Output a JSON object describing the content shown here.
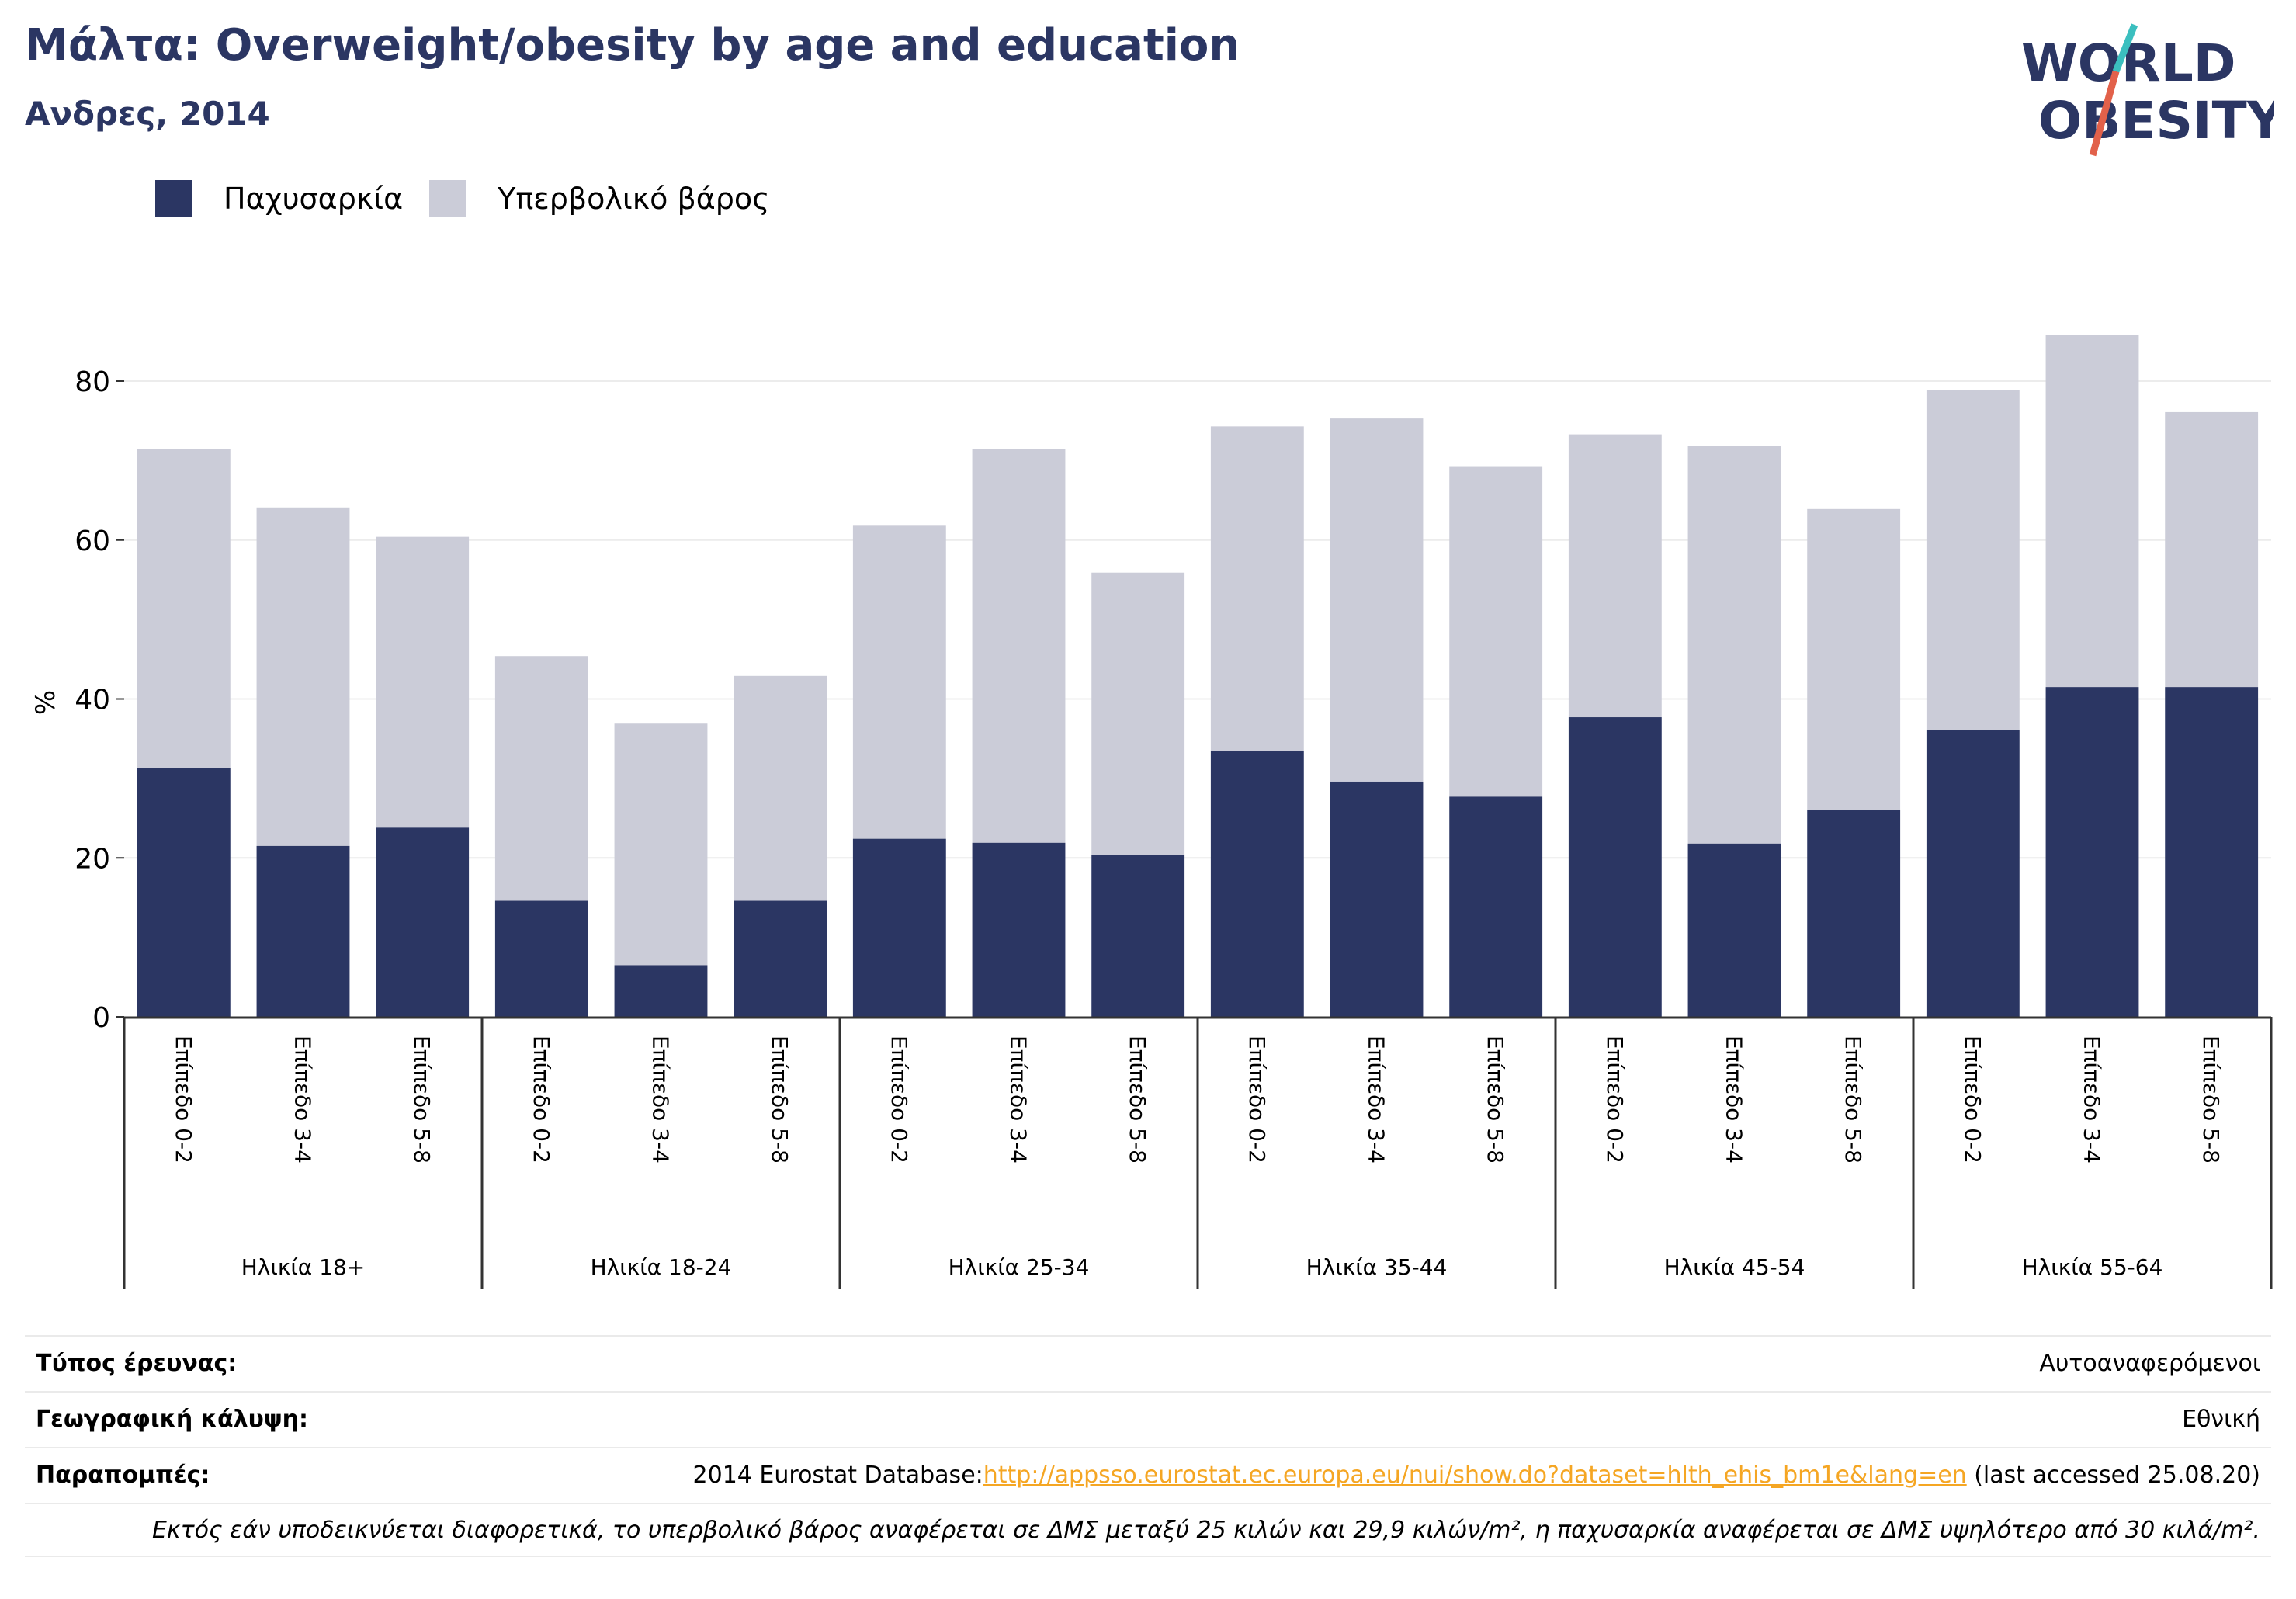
{
  "header": {
    "title": "Μάλτα: Overweight/obesity by age and education",
    "subtitle": "Ανδρες, 2014",
    "logo_line1": "WORLD",
    "logo_line2": "OBESITY"
  },
  "colors": {
    "obesity": "#2b3663",
    "overweight": "#cbccd8",
    "title": "#2b3663",
    "link": "#f5a623",
    "logo_teal": "#3bbfbf",
    "logo_red": "#e2614a"
  },
  "legend": {
    "items": [
      {
        "label": "Παχυσαρκία",
        "color": "#2b3663"
      },
      {
        "label": "Υπερβολικό βάρος",
        "color": "#cbccd8"
      }
    ]
  },
  "chart_data": {
    "type": "bar",
    "stacked": true,
    "ylabel": "%",
    "ylim": [
      0,
      90
    ],
    "yticks": [
      0,
      20,
      40,
      60,
      80
    ],
    "grid": true,
    "legend_position": "top-left",
    "groups": [
      "Ηλικία 18+",
      "Ηλικία 18-24",
      "Ηλικία 25-34",
      "Ηλικία 35-44",
      "Ηλικία 45-54",
      "Ηλικία 55-64"
    ],
    "categories": [
      "Επίπεδο 0-2",
      "Επίπεδο 3-4",
      "Επίπεδο 5-8"
    ],
    "series": [
      {
        "name": "Παχυσαρκία",
        "values": [
          [
            31.3,
            21.5,
            23.8
          ],
          [
            14.6,
            6.5,
            14.6
          ],
          [
            22.4,
            21.9,
            20.4
          ],
          [
            33.5,
            29.6,
            27.7
          ],
          [
            37.7,
            21.8,
            26.0
          ],
          [
            36.1,
            41.5,
            41.5
          ]
        ]
      },
      {
        "name": "Υπερβολικό βάρος",
        "values": [
          [
            40.2,
            42.6,
            36.6
          ],
          [
            30.8,
            30.4,
            28.3
          ],
          [
            39.4,
            49.6,
            35.5
          ],
          [
            40.8,
            45.7,
            41.6
          ],
          [
            35.6,
            50.0,
            37.9
          ],
          [
            42.8,
            44.3,
            34.6
          ]
        ]
      }
    ]
  },
  "info": {
    "survey_type_label": "Τύπος έρευνας:",
    "survey_type_value": "Αυτοαναφερόμενοι",
    "coverage_label": "Γεωγραφική κάλυψη:",
    "coverage_value": "Εθνική",
    "refs_label": "Παραπομπές:",
    "refs_prefix": "2014 Eurostat Database:",
    "refs_link": "http://appsso.eurostat.ec.europa.eu/nui/show.do?dataset=hlth_ehis_bm1e&lang=en",
    "refs_suffix": " (last accessed 25.08.20)",
    "note": "Εκτός εάν υποδεικνύεται διαφορετικά, το υπερβολικό βάρος αναφέρεται σε ΔΜΣ μεταξύ 25 κιλών και 29,9 κιλών/m², η παχυσαρκία αναφέρεται σε ΔΜΣ υψηλότερο από 30 κιλά/m²."
  }
}
